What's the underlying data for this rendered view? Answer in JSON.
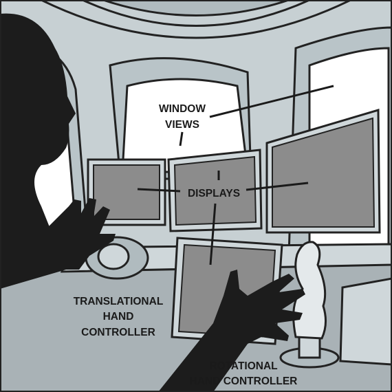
{
  "labels": {
    "window_views": [
      "WINDOW",
      "VIEWS"
    ],
    "displays": "DISPLAYS",
    "translational": [
      "TRANSLATIONAL",
      "HAND",
      "CONTROLLER"
    ],
    "rotational": [
      "ROTATIONAL",
      "HAND CONTROLLER"
    ]
  },
  "colors": {
    "silhouette": "#1c1c1c",
    "frame": "#b9c4c8",
    "frame_dark": "#8e9aa0",
    "screen": "#8c8c8c",
    "window": "#ffffff",
    "console": "#a9b2b6",
    "outline": "#222222"
  }
}
